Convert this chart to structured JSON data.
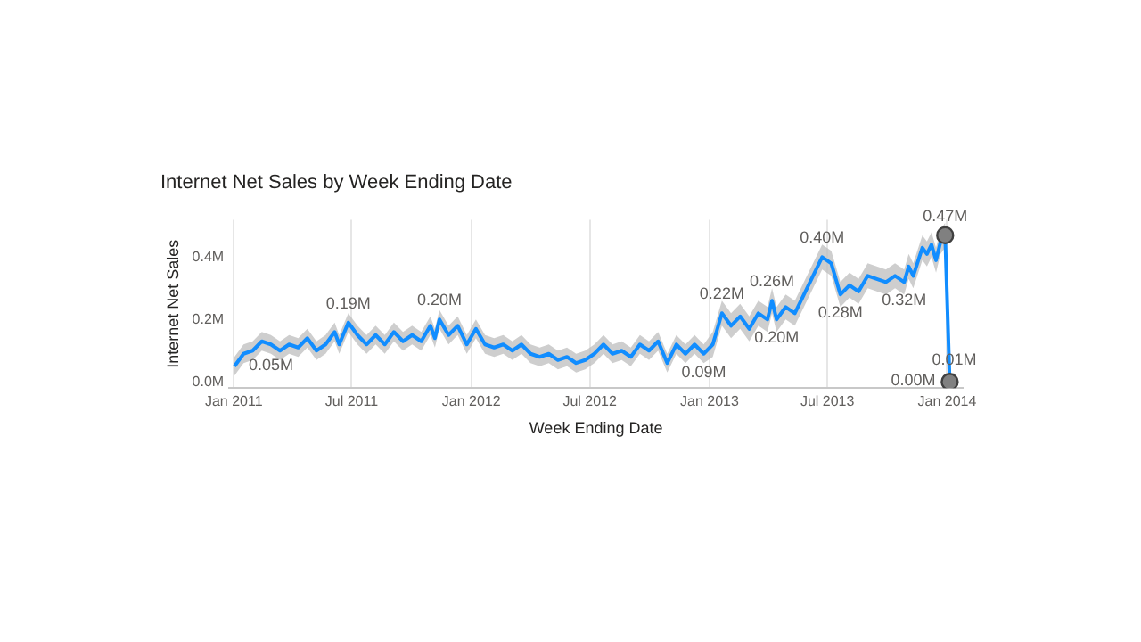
{
  "chart_data": {
    "type": "line",
    "title": "Internet Net Sales by Week Ending Date",
    "xlabel": "Week Ending Date",
    "ylabel": "Internet Net Sales",
    "x": [
      "2011-01-02",
      "2011-01-16",
      "2011-01-30",
      "2011-02-13",
      "2011-02-27",
      "2011-03-13",
      "2011-03-27",
      "2011-04-10",
      "2011-04-24",
      "2011-05-08",
      "2011-05-22",
      "2011-06-05",
      "2011-06-12",
      "2011-06-26",
      "2011-07-10",
      "2011-07-24",
      "2011-08-07",
      "2011-08-21",
      "2011-09-04",
      "2011-09-18",
      "2011-10-02",
      "2011-10-16",
      "2011-10-30",
      "2011-11-06",
      "2011-11-13",
      "2011-11-27",
      "2011-12-11",
      "2011-12-25",
      "2012-01-08",
      "2012-01-22",
      "2012-02-05",
      "2012-02-19",
      "2012-03-04",
      "2012-03-18",
      "2012-04-01",
      "2012-04-15",
      "2012-04-29",
      "2012-05-13",
      "2012-05-27",
      "2012-06-10",
      "2012-06-24",
      "2012-07-08",
      "2012-07-22",
      "2012-08-05",
      "2012-08-19",
      "2012-09-02",
      "2012-09-16",
      "2012-09-30",
      "2012-10-14",
      "2012-10-28",
      "2012-11-11",
      "2012-11-25",
      "2012-12-09",
      "2012-12-23",
      "2013-01-06",
      "2013-01-20",
      "2013-02-03",
      "2013-02-17",
      "2013-03-03",
      "2013-03-17",
      "2013-03-31",
      "2013-04-07",
      "2013-04-14",
      "2013-04-28",
      "2013-05-12",
      "2013-05-26",
      "2013-06-09",
      "2013-06-23",
      "2013-07-07",
      "2013-07-21",
      "2013-08-04",
      "2013-08-18",
      "2013-09-01",
      "2013-09-15",
      "2013-09-29",
      "2013-10-13",
      "2013-10-27",
      "2013-11-03",
      "2013-11-10",
      "2013-11-24",
      "2013-12-01",
      "2013-12-08",
      "2013-12-15",
      "2013-12-22",
      "2013-12-29",
      "2014-01-05",
      "2014-01-12"
    ],
    "series": [
      {
        "color": "#118dff",
        "values": [
          0.05,
          0.09,
          0.1,
          0.13,
          0.12,
          0.1,
          0.12,
          0.11,
          0.14,
          0.1,
          0.12,
          0.16,
          0.12,
          0.19,
          0.15,
          0.12,
          0.15,
          0.12,
          0.16,
          0.13,
          0.15,
          0.13,
          0.18,
          0.14,
          0.2,
          0.15,
          0.18,
          0.12,
          0.17,
          0.12,
          0.11,
          0.12,
          0.1,
          0.12,
          0.09,
          0.08,
          0.09,
          0.07,
          0.08,
          0.06,
          0.07,
          0.09,
          0.12,
          0.09,
          0.1,
          0.08,
          0.12,
          0.1,
          0.13,
          0.06,
          0.12,
          0.09,
          0.12,
          0.09,
          0.12,
          0.22,
          0.18,
          0.21,
          0.17,
          0.22,
          0.2,
          0.26,
          0.2,
          0.24,
          0.22,
          0.28,
          0.34,
          0.4,
          0.38,
          0.28,
          0.31,
          0.29,
          0.34,
          0.33,
          0.32,
          0.34,
          0.32,
          0.37,
          0.34,
          0.43,
          0.41,
          0.44,
          0.39,
          0.45,
          0.47,
          0.0,
          0.01
        ],
        "value_labels": [
          "0.05M",
          null,
          null,
          null,
          null,
          null,
          null,
          null,
          null,
          null,
          null,
          null,
          null,
          "0.19M",
          null,
          null,
          null,
          null,
          null,
          null,
          null,
          null,
          null,
          null,
          "0.20M",
          null,
          null,
          null,
          null,
          null,
          null,
          null,
          null,
          null,
          null,
          null,
          null,
          null,
          null,
          null,
          null,
          null,
          null,
          null,
          null,
          null,
          null,
          null,
          null,
          null,
          null,
          null,
          null,
          "0.09M",
          null,
          "0.22M",
          null,
          null,
          null,
          null,
          null,
          "0.26M",
          "0.20M",
          null,
          null,
          null,
          null,
          "0.40M",
          null,
          "0.28M",
          null,
          null,
          null,
          null,
          null,
          null,
          "0.32M",
          null,
          null,
          null,
          null,
          null,
          null,
          null,
          "0.47M",
          "0.00M",
          "0.01M"
        ],
        "lower": [
          0.02,
          0.06,
          0.07,
          0.1,
          0.09,
          0.07,
          0.09,
          0.08,
          0.11,
          0.07,
          0.09,
          0.13,
          0.09,
          0.16,
          0.12,
          0.09,
          0.12,
          0.09,
          0.13,
          0.1,
          0.12,
          0.1,
          0.15,
          0.11,
          0.17,
          0.12,
          0.15,
          0.09,
          0.14,
          0.09,
          0.08,
          0.09,
          0.07,
          0.09,
          0.06,
          0.05,
          0.06,
          0.04,
          0.05,
          0.03,
          0.04,
          0.06,
          0.09,
          0.06,
          0.07,
          0.05,
          0.09,
          0.07,
          0.1,
          0.03,
          0.09,
          0.06,
          0.09,
          0.06,
          0.08,
          0.18,
          0.14,
          0.17,
          0.13,
          0.18,
          0.16,
          0.22,
          0.16,
          0.2,
          0.18,
          0.24,
          0.3,
          0.36,
          0.34,
          0.24,
          0.27,
          0.25,
          0.3,
          0.29,
          0.28,
          0.3,
          0.28,
          0.33,
          0.3,
          0.39,
          0.37,
          0.4,
          0.35,
          0.41,
          0.43,
          -0.02,
          -0.01
        ],
        "upper": [
          0.08,
          0.12,
          0.13,
          0.16,
          0.15,
          0.13,
          0.15,
          0.14,
          0.17,
          0.13,
          0.15,
          0.19,
          0.15,
          0.22,
          0.18,
          0.15,
          0.18,
          0.15,
          0.19,
          0.16,
          0.18,
          0.16,
          0.21,
          0.17,
          0.23,
          0.18,
          0.21,
          0.15,
          0.2,
          0.15,
          0.14,
          0.15,
          0.13,
          0.15,
          0.12,
          0.11,
          0.12,
          0.1,
          0.11,
          0.09,
          0.1,
          0.12,
          0.15,
          0.12,
          0.13,
          0.11,
          0.15,
          0.13,
          0.16,
          0.09,
          0.15,
          0.12,
          0.15,
          0.12,
          0.16,
          0.26,
          0.22,
          0.25,
          0.21,
          0.26,
          0.24,
          0.3,
          0.24,
          0.28,
          0.26,
          0.32,
          0.38,
          0.44,
          0.42,
          0.32,
          0.35,
          0.33,
          0.38,
          0.37,
          0.36,
          0.38,
          0.36,
          0.41,
          0.38,
          0.47,
          0.45,
          0.48,
          0.43,
          0.49,
          0.51,
          0.02,
          0.03
        ]
      },
      {
        "type": "scatter",
        "color": "#808080",
        "marker": "circle",
        "x": [
          "2013-12-29",
          "2014-01-05"
        ],
        "values": [
          0.47,
          0.0
        ]
      }
    ],
    "xlim": [
      "2010-12-25",
      "2014-01-25"
    ],
    "xticks": [
      {
        "value": "2011-01-01",
        "label": "Jan 2011"
      },
      {
        "value": "2011-07-01",
        "label": "Jul 2011"
      },
      {
        "value": "2012-01-01",
        "label": "Jan 2012"
      },
      {
        "value": "2012-07-01",
        "label": "Jul 2012"
      },
      {
        "value": "2013-01-01",
        "label": "Jan 2013"
      },
      {
        "value": "2013-07-01",
        "label": "Jul 2013"
      },
      {
        "value": "2014-01-01",
        "label": "Jan 2014"
      }
    ],
    "ylim": [
      -0.02,
      0.52
    ],
    "yticks": [
      {
        "value": 0,
        "label": "0.0M"
      },
      {
        "value": 0.2,
        "label": "0.2M"
      },
      {
        "value": 0.4,
        "label": "0.4M"
      }
    ],
    "grid": "x",
    "line_style": "solid"
  }
}
